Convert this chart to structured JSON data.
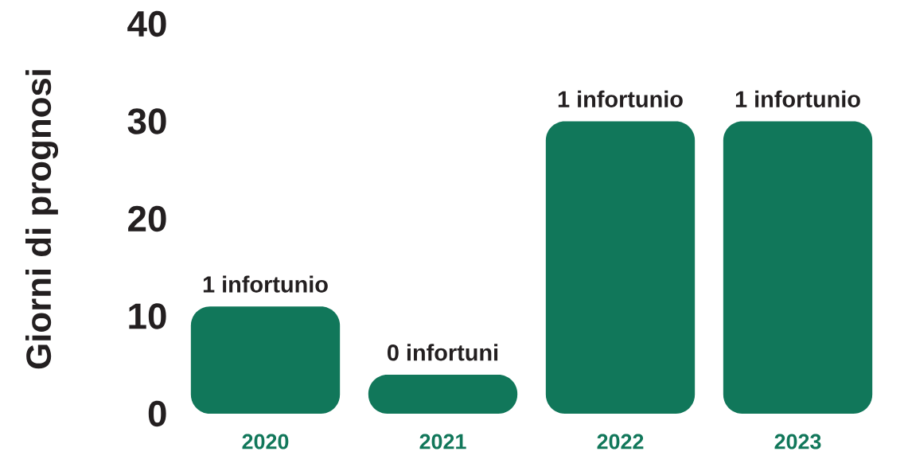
{
  "chart_data": {
    "type": "bar",
    "ylabel": "Giorni di prognosi",
    "categories": [
      "2020",
      "2021",
      "2022",
      "2023"
    ],
    "values": [
      11,
      4,
      30,
      30
    ],
    "annotations": [
      {
        "text": "1 infortunio",
        "x": "2020",
        "y": 11
      },
      {
        "text": "0 infortuni",
        "x": "2021",
        "y": 4
      },
      {
        "text": "1 infortunio",
        "x": "2022",
        "y": 30
      },
      {
        "text": "1 infortunio",
        "x": "2023",
        "y": 30
      }
    ],
    "color": "#11775a",
    "ylim": [
      0,
      40
    ],
    "yticks": [
      0,
      10,
      20,
      30,
      40
    ],
    "grid": false
  }
}
